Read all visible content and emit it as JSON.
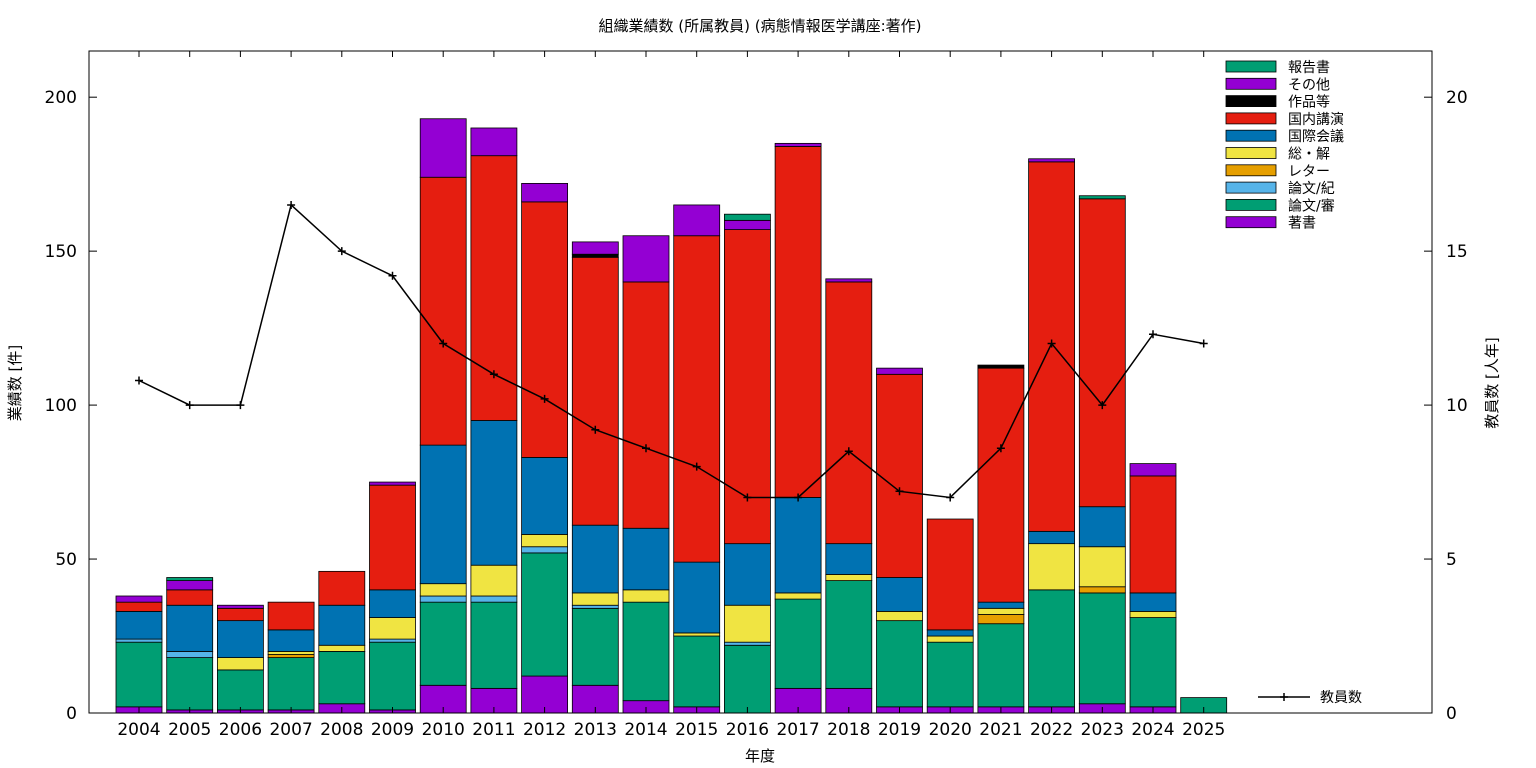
{
  "chart_data": {
    "type": "bar",
    "stacked": true,
    "title": "組織業績数 (所属教員) (病態情報医学講座:著作)",
    "xlabel": "年度",
    "ylabel": "業績数 [件]",
    "y2label": "教員数 [人年]",
    "ylim": [
      0,
      215
    ],
    "y2lim": [
      0,
      21.5
    ],
    "yticks": [
      0,
      50,
      100,
      150,
      200
    ],
    "y2ticks": [
      0,
      5,
      10,
      15,
      20
    ],
    "grid": false,
    "legend_position": "top-right",
    "categories": [
      "2004",
      "2005",
      "2006",
      "2007",
      "2008",
      "2009",
      "2010",
      "2011",
      "2012",
      "2013",
      "2014",
      "2015",
      "2016",
      "2017",
      "2018",
      "2019",
      "2020",
      "2021",
      "2022",
      "2023",
      "2024",
      "2025"
    ],
    "series": [
      {
        "name": "著書",
        "color": "#9400d3",
        "values": [
          2,
          1,
          1,
          1,
          3,
          1,
          9,
          8,
          12,
          9,
          4,
          2,
          0,
          8,
          8,
          2,
          2,
          2,
          2,
          3,
          2,
          0
        ]
      },
      {
        "name": "論文/審",
        "color": "#009e73",
        "values": [
          21,
          17,
          13,
          17,
          17,
          22,
          27,
          28,
          40,
          25,
          32,
          23,
          22,
          29,
          35,
          28,
          21,
          27,
          38,
          36,
          29,
          0
        ]
      },
      {
        "name": "論文/紀",
        "color": "#56b4e9",
        "values": [
          1,
          2,
          0,
          0,
          0,
          1,
          2,
          2,
          2,
          1,
          0,
          0,
          1,
          0,
          0,
          0,
          0,
          0,
          0,
          0,
          0,
          0
        ]
      },
      {
        "name": "レター",
        "color": "#e69f00",
        "values": [
          0,
          0,
          0,
          1,
          0,
          0,
          0,
          0,
          0,
          0,
          0,
          0,
          0,
          0,
          0,
          0,
          0,
          3,
          0,
          2,
          0,
          0
        ]
      },
      {
        "name": "総・解",
        "color": "#f0e442",
        "values": [
          0,
          0,
          4,
          1,
          2,
          7,
          4,
          10,
          4,
          4,
          4,
          1,
          12,
          2,
          2,
          3,
          2,
          2,
          15,
          13,
          2,
          0
        ]
      },
      {
        "name": "国際会議",
        "color": "#0072b2",
        "values": [
          9,
          15,
          12,
          7,
          13,
          9,
          45,
          47,
          25,
          22,
          20,
          23,
          20,
          31,
          10,
          11,
          2,
          2,
          4,
          13,
          6,
          0
        ]
      },
      {
        "name": "国内講演",
        "color": "#e51e10",
        "values": [
          3,
          5,
          4,
          9,
          11,
          34,
          87,
          86,
          83,
          87,
          80,
          106,
          102,
          114,
          85,
          66,
          36,
          76,
          120,
          100,
          38,
          0
        ]
      },
      {
        "name": "作品等",
        "color": "#000000",
        "values": [
          0,
          0,
          0,
          0,
          0,
          0,
          0,
          0,
          0,
          1,
          0,
          0,
          0,
          0,
          0,
          0,
          0,
          1,
          0,
          0,
          0,
          0
        ]
      },
      {
        "name": "その他",
        "color": "#9400d3",
        "values": [
          2,
          3,
          1,
          0,
          0,
          1,
          19,
          9,
          6,
          4,
          15,
          10,
          3,
          1,
          1,
          2,
          0,
          0,
          1,
          0,
          4,
          0
        ]
      },
      {
        "name": "報告書",
        "color": "#009e73",
        "values": [
          0,
          1,
          0,
          0,
          0,
          0,
          0,
          0,
          0,
          0,
          0,
          0,
          2,
          0,
          0,
          0,
          0,
          0,
          0,
          1,
          0,
          5
        ]
      }
    ],
    "line_series": {
      "name": "教員数",
      "color": "#000000",
      "axis": "right",
      "values": [
        10.8,
        10.0,
        10.0,
        16.5,
        15.0,
        14.2,
        12.0,
        11.0,
        10.2,
        9.2,
        8.6,
        8.0,
        7.0,
        7.0,
        8.5,
        7.2,
        7.0,
        8.6,
        12.0,
        10.0,
        12.3,
        12.0
      ]
    }
  }
}
